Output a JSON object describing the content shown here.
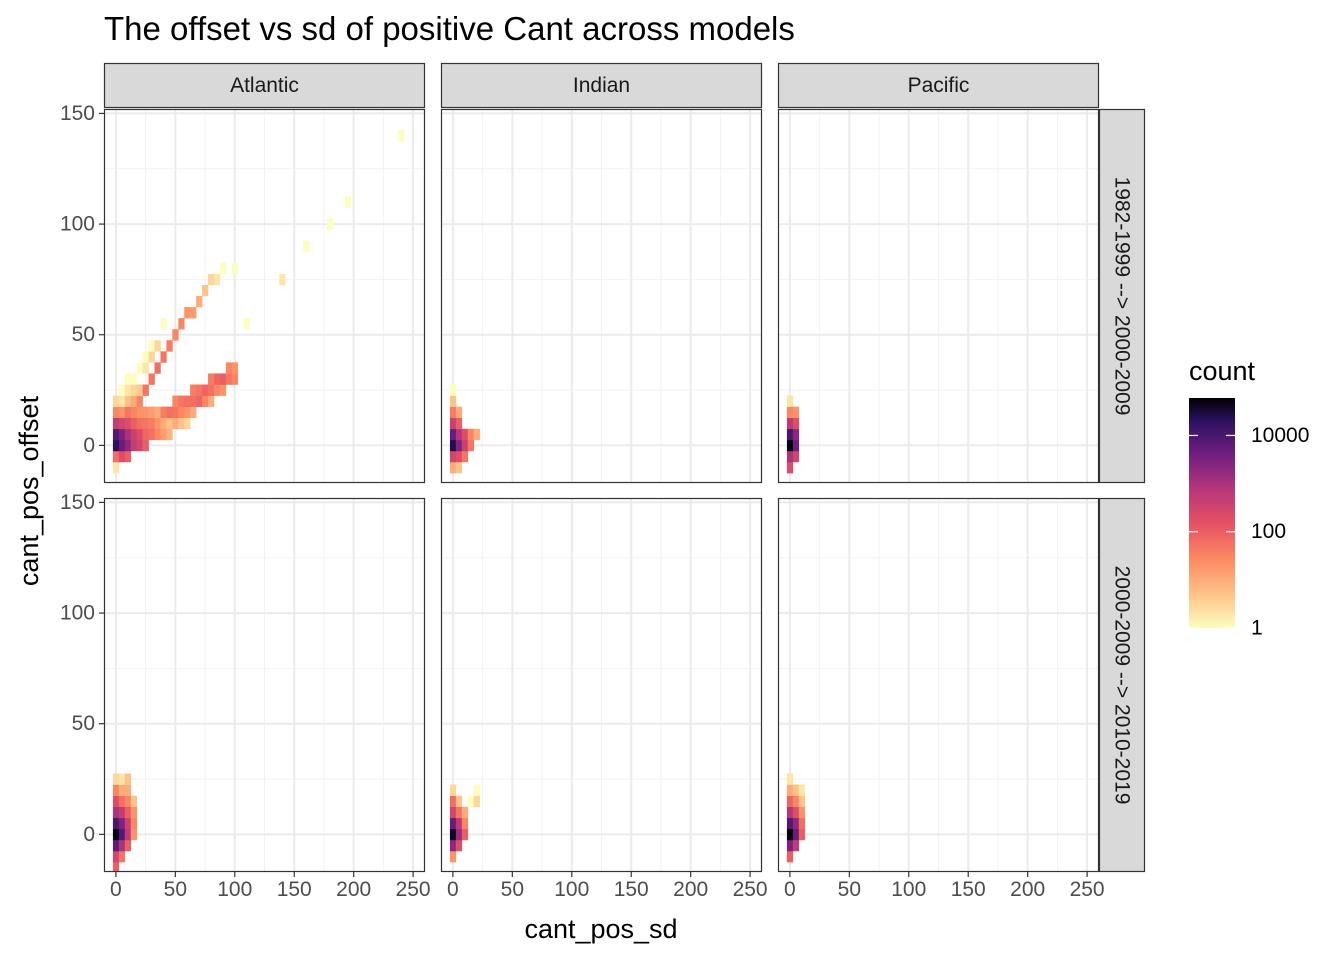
{
  "chart_data": {
    "type": "heatmap",
    "title": "The offset vs sd of positive Cant across models",
    "xlabel": "cant_pos_sd",
    "ylabel": "cant_pos_offset",
    "xlim": [
      -10,
      260
    ],
    "ylim": [
      -17,
      152
    ],
    "x_ticks": [
      0,
      50,
      100,
      150,
      200,
      250
    ],
    "y_ticks": [
      0,
      50,
      100,
      150
    ],
    "columns": [
      "Atlantic",
      "Indian",
      "Pacific"
    ],
    "rows": [
      "1982-1999 --> 2000-2009",
      "2000-2009 --> 2010-2019"
    ],
    "bin_width": [
      5,
      5
    ],
    "legend": {
      "title": "count",
      "scale": "log10",
      "min": 1,
      "max": 60000,
      "breaks": [
        1,
        100,
        10000
      ],
      "break_labels": [
        "1",
        "100",
        "10000"
      ]
    },
    "panels": [
      {
        "column": "Atlantic",
        "row": "1982-1999 --> 2000-2009",
        "cells": [
          [
            0,
            -10,
            2
          ],
          [
            0,
            -5,
            60
          ],
          [
            0,
            0,
            20000
          ],
          [
            0,
            5,
            8000
          ],
          [
            0,
            10,
            500
          ],
          [
            0,
            15,
            30
          ],
          [
            0,
            20,
            3
          ],
          [
            5,
            -5,
            200
          ],
          [
            5,
            0,
            5000
          ],
          [
            5,
            5,
            3000
          ],
          [
            5,
            10,
            300
          ],
          [
            5,
            15,
            20
          ],
          [
            5,
            20,
            2
          ],
          [
            5,
            25,
            1
          ],
          [
            10,
            -5,
            100
          ],
          [
            10,
            0,
            2000
          ],
          [
            10,
            5,
            1000
          ],
          [
            10,
            10,
            200
          ],
          [
            10,
            15,
            50
          ],
          [
            10,
            20,
            5
          ],
          [
            10,
            25,
            2
          ],
          [
            10,
            30,
            1
          ],
          [
            15,
            0,
            500
          ],
          [
            15,
            5,
            400
          ],
          [
            15,
            10,
            100
          ],
          [
            15,
            15,
            30
          ],
          [
            15,
            20,
            10
          ],
          [
            15,
            25,
            3
          ],
          [
            15,
            30,
            1
          ],
          [
            20,
            0,
            300
          ],
          [
            20,
            5,
            200
          ],
          [
            20,
            10,
            60
          ],
          [
            20,
            15,
            20
          ],
          [
            20,
            20,
            30
          ],
          [
            20,
            25,
            4
          ],
          [
            20,
            35,
            1
          ],
          [
            25,
            0,
            100
          ],
          [
            25,
            5,
            80
          ],
          [
            25,
            10,
            50
          ],
          [
            25,
            15,
            20
          ],
          [
            25,
            25,
            50
          ],
          [
            25,
            35,
            2
          ],
          [
            25,
            40,
            1
          ],
          [
            30,
            5,
            60
          ],
          [
            30,
            10,
            40
          ],
          [
            30,
            15,
            15
          ],
          [
            30,
            30,
            50
          ],
          [
            30,
            40,
            3
          ],
          [
            30,
            45,
            1
          ],
          [
            35,
            5,
            30
          ],
          [
            35,
            10,
            20
          ],
          [
            35,
            15,
            10
          ],
          [
            35,
            35,
            60
          ],
          [
            35,
            45,
            3
          ],
          [
            40,
            5,
            15
          ],
          [
            40,
            10,
            10
          ],
          [
            40,
            15,
            40
          ],
          [
            40,
            40,
            50
          ],
          [
            40,
            55,
            1
          ],
          [
            45,
            5,
            8
          ],
          [
            45,
            10,
            5
          ],
          [
            45,
            15,
            60
          ],
          [
            45,
            45,
            40
          ],
          [
            50,
            10,
            10
          ],
          [
            50,
            15,
            50
          ],
          [
            50,
            20,
            30
          ],
          [
            50,
            50,
            30
          ],
          [
            55,
            10,
            5
          ],
          [
            55,
            15,
            30
          ],
          [
            55,
            20,
            50
          ],
          [
            55,
            55,
            30
          ],
          [
            60,
            10,
            3
          ],
          [
            60,
            15,
            20
          ],
          [
            60,
            20,
            60
          ],
          [
            60,
            60,
            20
          ],
          [
            65,
            15,
            10
          ],
          [
            65,
            20,
            60
          ],
          [
            65,
            25,
            40
          ],
          [
            65,
            60,
            15
          ],
          [
            70,
            20,
            80
          ],
          [
            70,
            25,
            50
          ],
          [
            70,
            65,
            10
          ],
          [
            75,
            20,
            30
          ],
          [
            75,
            25,
            80
          ],
          [
            75,
            70,
            5
          ],
          [
            80,
            20,
            10
          ],
          [
            80,
            25,
            60
          ],
          [
            80,
            30,
            40
          ],
          [
            80,
            75,
            3
          ],
          [
            85,
            25,
            30
          ],
          [
            85,
            30,
            80
          ],
          [
            85,
            75,
            2
          ],
          [
            90,
            25,
            20
          ],
          [
            90,
            30,
            100
          ],
          [
            90,
            80,
            1
          ],
          [
            95,
            30,
            50
          ],
          [
            95,
            35,
            30
          ],
          [
            100,
            30,
            30
          ],
          [
            100,
            35,
            20
          ],
          [
            100,
            80,
            1
          ],
          [
            110,
            55,
            1
          ],
          [
            140,
            75,
            2
          ],
          [
            160,
            90,
            1
          ],
          [
            180,
            100,
            1
          ],
          [
            195,
            110,
            1
          ],
          [
            240,
            140,
            1
          ]
        ]
      },
      {
        "column": "Indian",
        "row": "1982-1999 --> 2000-2009",
        "cells": [
          [
            0,
            -10,
            10
          ],
          [
            0,
            -5,
            300
          ],
          [
            0,
            0,
            25000
          ],
          [
            0,
            5,
            5000
          ],
          [
            0,
            10,
            400
          ],
          [
            0,
            15,
            40
          ],
          [
            0,
            20,
            5
          ],
          [
            0,
            25,
            1
          ],
          [
            5,
            -10,
            5
          ],
          [
            5,
            -5,
            200
          ],
          [
            5,
            0,
            3000
          ],
          [
            5,
            5,
            800
          ],
          [
            5,
            10,
            100
          ],
          [
            5,
            15,
            10
          ],
          [
            10,
            -5,
            50
          ],
          [
            10,
            0,
            400
          ],
          [
            10,
            5,
            200
          ],
          [
            15,
            0,
            50
          ],
          [
            15,
            5,
            30
          ],
          [
            20,
            5,
            10
          ]
        ]
      },
      {
        "column": "Pacific",
        "row": "1982-1999 --> 2000-2009",
        "cells": [
          [
            0,
            -10,
            200
          ],
          [
            0,
            -5,
            1000
          ],
          [
            0,
            0,
            60000
          ],
          [
            0,
            5,
            10000
          ],
          [
            0,
            10,
            600
          ],
          [
            0,
            15,
            30
          ],
          [
            0,
            20,
            2
          ],
          [
            5,
            -5,
            300
          ],
          [
            5,
            0,
            4000
          ],
          [
            5,
            5,
            2000
          ],
          [
            5,
            10,
            200
          ],
          [
            5,
            15,
            20
          ]
        ]
      },
      {
        "column": "Atlantic",
        "row": "2000-2009 --> 2010-2019",
        "cells": [
          [
            0,
            -15,
            100
          ],
          [
            0,
            -10,
            300
          ],
          [
            0,
            -5,
            6000
          ],
          [
            0,
            0,
            50000
          ],
          [
            0,
            5,
            10000
          ],
          [
            0,
            10,
            1000
          ],
          [
            0,
            15,
            200
          ],
          [
            0,
            20,
            30
          ],
          [
            0,
            25,
            3
          ],
          [
            5,
            -10,
            50
          ],
          [
            5,
            -5,
            1000
          ],
          [
            5,
            0,
            8000
          ],
          [
            5,
            5,
            3000
          ],
          [
            5,
            10,
            500
          ],
          [
            5,
            15,
            60
          ],
          [
            5,
            20,
            10
          ],
          [
            5,
            25,
            2
          ],
          [
            10,
            -5,
            100
          ],
          [
            10,
            0,
            600
          ],
          [
            10,
            5,
            400
          ],
          [
            10,
            10,
            100
          ],
          [
            10,
            15,
            30
          ],
          [
            10,
            20,
            10
          ],
          [
            10,
            25,
            5
          ],
          [
            15,
            0,
            20
          ],
          [
            15,
            5,
            30
          ],
          [
            15,
            10,
            20
          ],
          [
            15,
            15,
            5
          ]
        ]
      },
      {
        "column": "Indian",
        "row": "2000-2009 --> 2010-2019",
        "cells": [
          [
            0,
            -10,
            20
          ],
          [
            0,
            -5,
            2000
          ],
          [
            0,
            0,
            40000
          ],
          [
            0,
            5,
            5000
          ],
          [
            0,
            10,
            300
          ],
          [
            0,
            15,
            60
          ],
          [
            0,
            20,
            3
          ],
          [
            5,
            -5,
            200
          ],
          [
            5,
            0,
            1500
          ],
          [
            5,
            5,
            600
          ],
          [
            5,
            10,
            50
          ],
          [
            5,
            15,
            5
          ],
          [
            10,
            0,
            100
          ],
          [
            10,
            5,
            30
          ],
          [
            10,
            10,
            10
          ],
          [
            15,
            15,
            1
          ],
          [
            20,
            15,
            3
          ],
          [
            20,
            20,
            1
          ]
        ]
      },
      {
        "column": "Pacific",
        "row": "2000-2009 --> 2010-2019",
        "cells": [
          [
            0,
            -10,
            100
          ],
          [
            0,
            -5,
            3000
          ],
          [
            0,
            0,
            60000
          ],
          [
            0,
            5,
            8000
          ],
          [
            0,
            10,
            800
          ],
          [
            0,
            15,
            80
          ],
          [
            0,
            20,
            10
          ],
          [
            0,
            25,
            2
          ],
          [
            5,
            -5,
            500
          ],
          [
            5,
            0,
            5000
          ],
          [
            5,
            5,
            2000
          ],
          [
            5,
            10,
            200
          ],
          [
            5,
            15,
            30
          ],
          [
            5,
            20,
            5
          ],
          [
            10,
            0,
            100
          ],
          [
            10,
            5,
            60
          ],
          [
            10,
            10,
            20
          ],
          [
            10,
            15,
            5
          ],
          [
            10,
            20,
            2
          ]
        ]
      }
    ]
  }
}
